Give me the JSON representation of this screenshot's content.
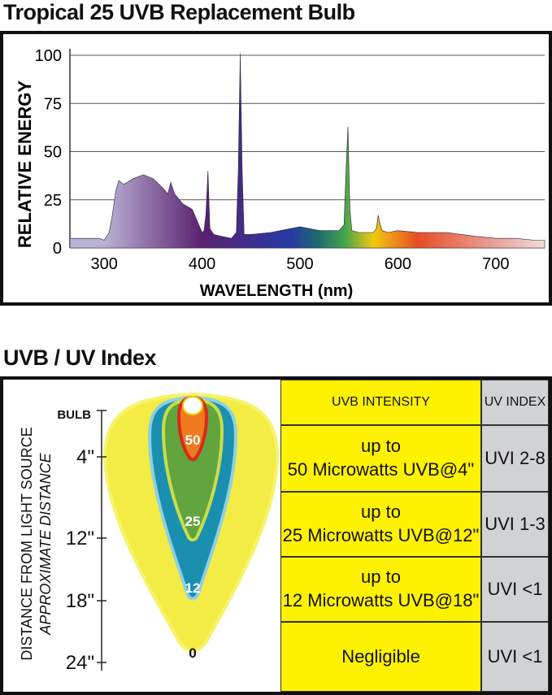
{
  "titles": {
    "spectrum": "Tropical 25 UVB Replacement Bulb",
    "uv": "UVB / UV Index"
  },
  "chart_data": {
    "type": "area",
    "title": "Tropical 25 UVB Replacement Bulb",
    "xlabel": "WAVELENGTH (nm)",
    "ylabel": "RELATIVE ENERGY",
    "xlim": [
      265,
      750
    ],
    "ylim": [
      0,
      100
    ],
    "x_ticks": [
      300,
      400,
      500,
      600,
      700
    ],
    "y_ticks": [
      0,
      25,
      50,
      75,
      100
    ],
    "grid": "horizontal",
    "x": [
      265,
      295,
      300,
      305,
      308,
      312,
      315,
      320,
      330,
      340,
      350,
      360,
      365,
      368,
      372,
      380,
      390,
      400,
      402,
      404,
      406,
      408,
      412,
      420,
      430,
      435,
      437,
      439,
      441,
      443,
      450,
      470,
      490,
      500,
      520,
      540,
      545,
      547,
      549,
      551,
      553,
      560,
      575,
      578,
      580,
      582,
      584,
      590,
      600,
      620,
      650,
      680,
      700,
      720,
      740,
      750
    ],
    "y": [
      5,
      5,
      4,
      8,
      16,
      30,
      35,
      33,
      36,
      38,
      36,
      31,
      28,
      34,
      28,
      23,
      20,
      8,
      9,
      18,
      40,
      10,
      7,
      6,
      5,
      8,
      40,
      101,
      40,
      7,
      7,
      8,
      10,
      11,
      9,
      9,
      12,
      40,
      63,
      20,
      9,
      8,
      8,
      10,
      17,
      12,
      9,
      8,
      9,
      8,
      8,
      6,
      5,
      5,
      4,
      4
    ],
    "spectrum_colors": [
      "#bab2d4",
      "#5a2070",
      "#253aa5",
      "#1e6c6a",
      "#3fa54f",
      "#f2c90e",
      "#e64e24",
      "#e9a29a",
      "#f1ddd9"
    ]
  },
  "uv_chart": {
    "bulb_label": "BULB",
    "axis_title_1": "DISTANCE FROM LIGHT SOURCE",
    "axis_title_2": "APPROXIMATE DISTANCE",
    "distances": [
      "4\"",
      "12\"",
      "18\"",
      "24\""
    ],
    "zones": [
      {
        "label": "50",
        "color": "#ef7a1e"
      },
      {
        "label": "25",
        "color": "#62a43e"
      },
      {
        "label": "12",
        "color": "#1b8fb0"
      },
      {
        "label": "0",
        "color": "#f2ec45"
      }
    ],
    "colors": {
      "yellow": "#fff200",
      "gray": "#d1d2d4"
    }
  },
  "table": {
    "headers": [
      "UVB INTENSITY",
      "UV INDEX"
    ],
    "rows": [
      {
        "intensity_line1": "up to",
        "intensity_line2": "50 Microwatts UVB@4\"",
        "index": "UVI 2-8"
      },
      {
        "intensity_line1": "up to",
        "intensity_line2": "25 Microwatts UVB@12\"",
        "index": "UVI 1-3"
      },
      {
        "intensity_line1": "up to",
        "intensity_line2": "12 Microwatts UVB@18\"",
        "index": "UVI <1"
      },
      {
        "intensity_line1": "Negligible",
        "intensity_line2": "",
        "index": "UVI <1"
      }
    ]
  }
}
